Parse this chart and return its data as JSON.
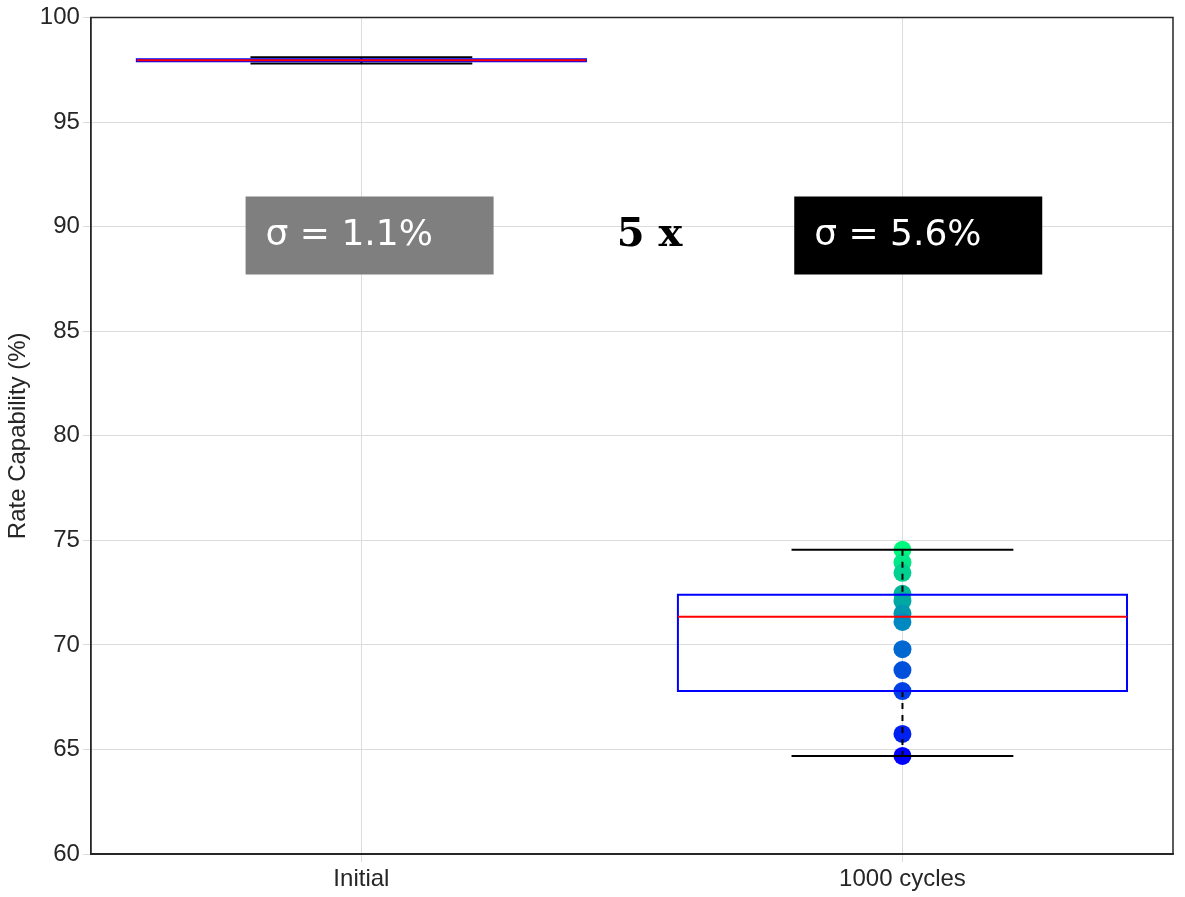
{
  "chart_data": {
    "type": "box",
    "ylabel": "Rate Capability (%)",
    "categories": [
      "Initial",
      "1000 cycles"
    ],
    "ylim": [
      60,
      100
    ],
    "yticks": [
      60,
      65,
      70,
      75,
      80,
      85,
      90,
      95,
      100
    ],
    "grid": true,
    "legend": false,
    "series": [
      {
        "color": "#0000ff",
        "boxes": [
          {
            "low": 97.8,
            "q1": 97.9,
            "median": 97.95,
            "q3": 98.0,
            "high": 98.1
          },
          {
            "low": 64.7,
            "q1": 67.8,
            "median": 71.35,
            "q3": 72.4,
            "high": 74.55
          }
        ]
      },
      {
        "type": "scatter",
        "marker": "circle",
        "x": [
          "1000 cycles",
          "1000 cycles",
          "1000 cycles",
          "1000 cycles",
          "1000 cycles",
          "1000 cycles",
          "1000 cycles",
          "1000 cycles",
          "1000 cycles",
          "1000 cycles",
          "1000 cycles",
          "1000 cycles"
        ],
        "values": [
          74.55,
          73.95,
          73.45,
          72.45,
          72.1,
          71.5,
          71.1,
          69.8,
          68.8,
          67.8,
          65.75,
          64.7
        ],
        "colors": [
          "#00f87e",
          "#00e888",
          "#00d090",
          "#00b89a",
          "#00a8a4",
          "#0098b0",
          "#0088c0",
          "#0068d0",
          "#0050dc",
          "#0040e4",
          "#0020f0",
          "#0000ff"
        ]
      }
    ],
    "annotations": [
      "σ = 1.1%",
      "5 x",
      "σ = 5.6%"
    ]
  }
}
